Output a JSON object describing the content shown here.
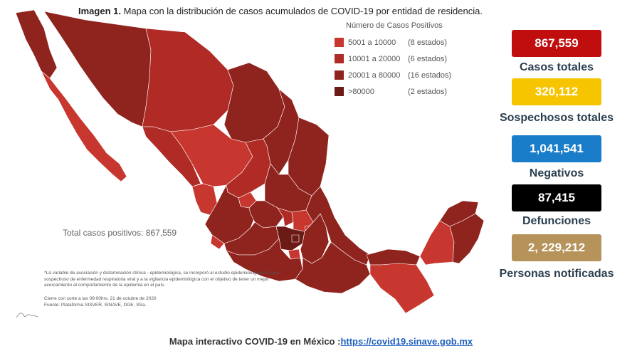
{
  "title": {
    "bold": "Imagen 1.",
    "text": " Mapa con la distribución de casos acumulados de COVID-19 por entidad de residencia."
  },
  "legend": {
    "title": "Número de Casos Positivos",
    "items": [
      {
        "range": "5001 a  10000",
        "count": "(8 estados)",
        "color": "#c8372f"
      },
      {
        "range": "10001 a  20000",
        "count": "(6 estados)",
        "color": "#b02b25"
      },
      {
        "range": "20001 a  80000",
        "count": "(16 estados)",
        "color": "#8f231d"
      },
      {
        "range": ">80000",
        "count": "(2 estados)",
        "color": "#6b1a15"
      }
    ]
  },
  "stats": [
    {
      "value": "867,559",
      "label": "Casos totales",
      "color": "#c00d0d"
    },
    {
      "value": "320,112",
      "label": "Sospechosos totales",
      "color": "#f7c500"
    },
    {
      "value": "1,041,541",
      "label": "Negativos",
      "color": "#1a7dc9"
    },
    {
      "value": "87,415",
      "label": "Defunciones",
      "color": "#000000"
    },
    {
      "value": "2, 229,212",
      "label": "Personas notificadas",
      "color": "#b5935a"
    }
  ],
  "total_note": "Total casos positivos: 867,559",
  "footnote": {
    "p1": "*La variable de asociación y dictaminación clínica - epidemiológica, se incorporó al estudio epidemiológico de caso sospechoso de enfermedad respiratoria viral y a la vigilancia epidemiológica con el objetivo de tener un mejor acercamiento al comportamiento de la epidemia en el país.",
    "p2": "Cierre con corte a las 09:00hrs, 21 de octubre de 2020",
    "p3": "Fuente: Plataforma SISVER, SINAVE, DGE, SSa."
  },
  "bottom": {
    "text": "Mapa interactivo COVID-19 en México :",
    "link": "https://covid19.sinave.gob.mx"
  },
  "icons": {
    "signature": "signature-icon"
  }
}
